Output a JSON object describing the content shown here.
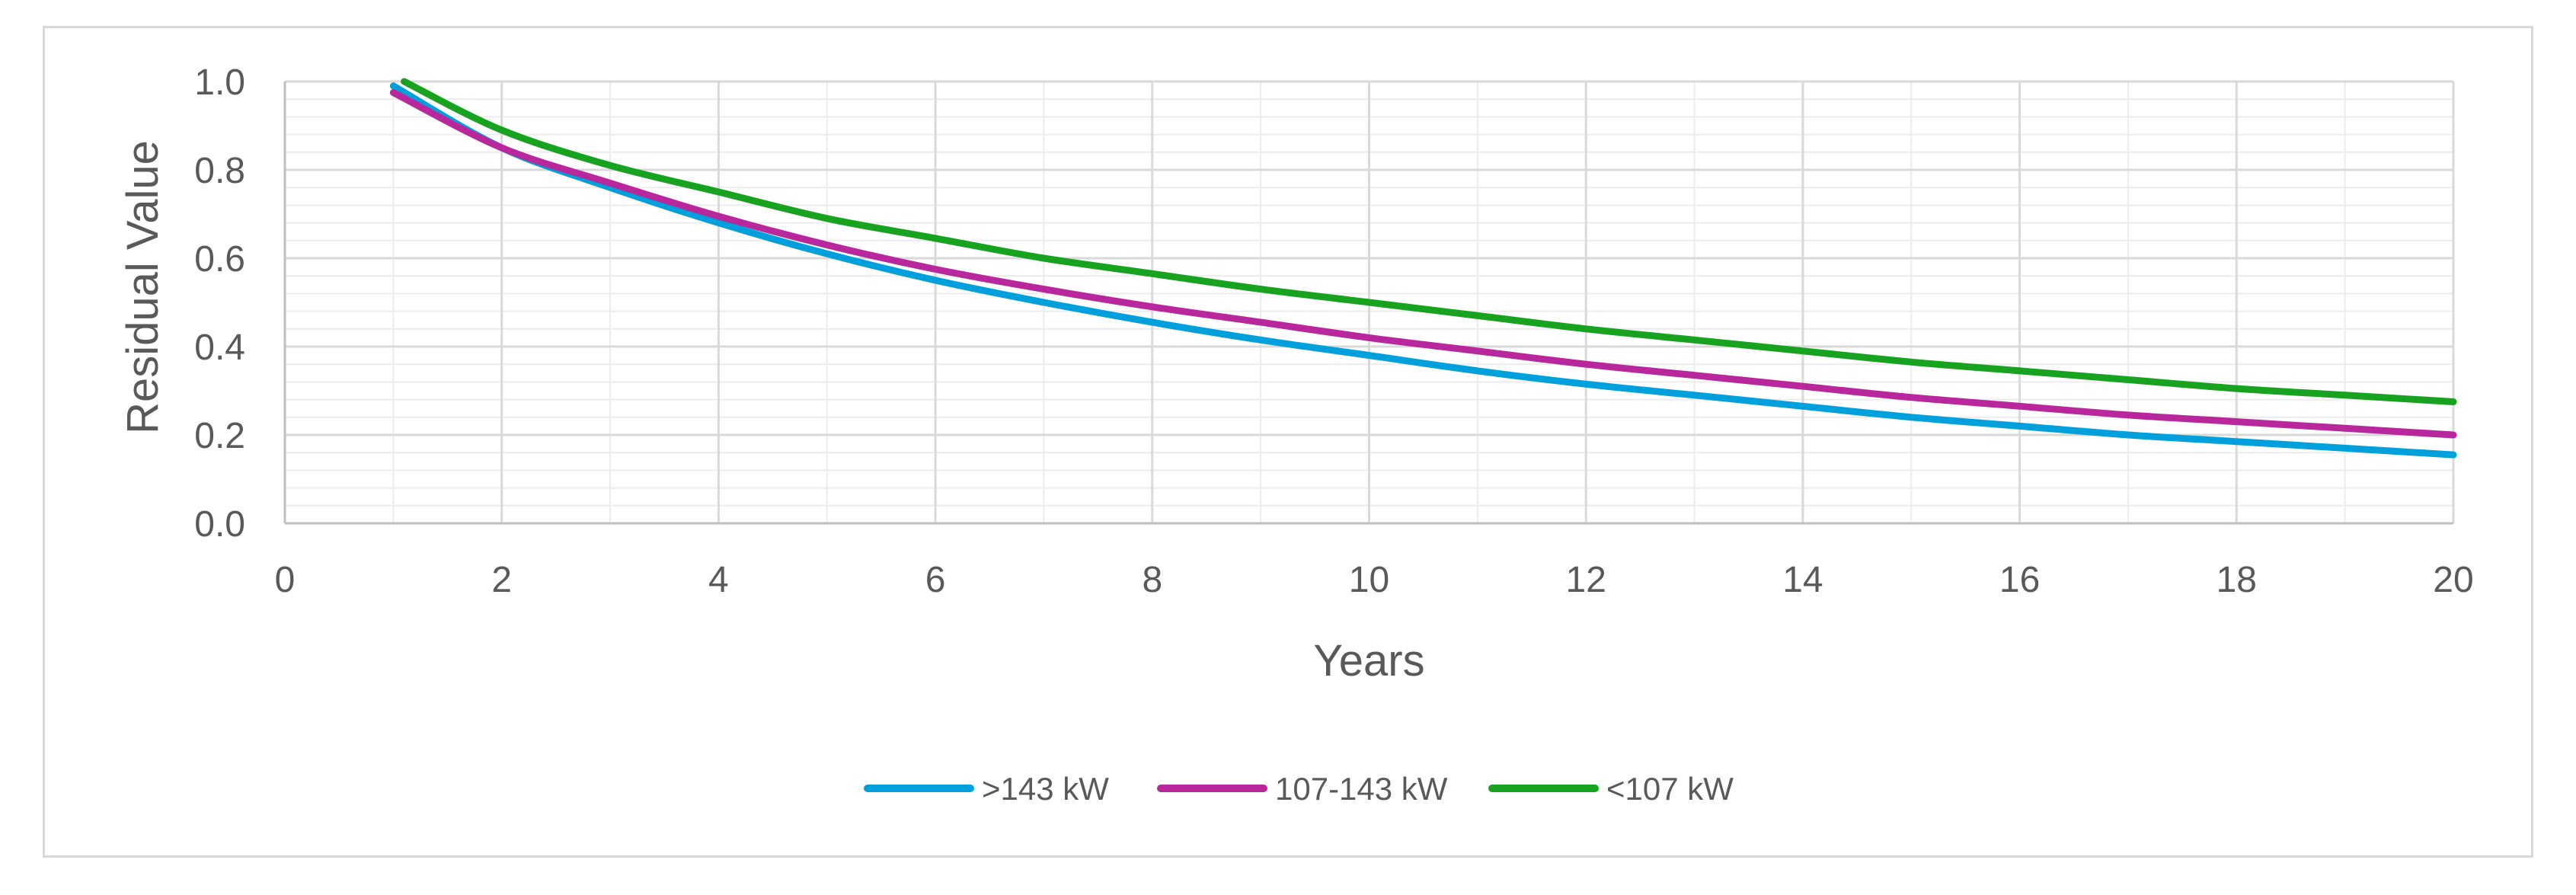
{
  "chart_data": {
    "type": "line",
    "title": "",
    "xlabel": "Years",
    "ylabel": "Residual Value",
    "xlim": [
      0,
      20
    ],
    "ylim": [
      0,
      1.0
    ],
    "xticks": [
      "0",
      "2",
      "4",
      "6",
      "8",
      "10",
      "12",
      "14",
      "16",
      "18",
      "20"
    ],
    "yticks": [
      "0.0",
      "0.2",
      "0.4",
      "0.6",
      "0.8",
      "1.0"
    ],
    "grid": true,
    "legend_position": "bottom",
    "series": [
      {
        "name": ">143 kW",
        "color": "#00a0dc",
        "x": [
          1,
          2,
          3,
          4,
          5,
          6,
          7,
          8,
          9,
          10,
          11,
          12,
          13,
          14,
          15,
          16,
          17,
          18,
          19,
          20
        ],
        "y": [
          0.99,
          0.85,
          0.76,
          0.68,
          0.61,
          0.55,
          0.5,
          0.455,
          0.415,
          0.38,
          0.345,
          0.315,
          0.29,
          0.265,
          0.24,
          0.22,
          0.2,
          0.185,
          0.17,
          0.155
        ]
      },
      {
        "name": "107-143 kW",
        "color": "#b8289c",
        "x": [
          1,
          2,
          3,
          4,
          5,
          6,
          7,
          8,
          9,
          10,
          11,
          12,
          13,
          14,
          15,
          16,
          17,
          18,
          19,
          20
        ],
        "y": [
          0.975,
          0.85,
          0.77,
          0.695,
          0.63,
          0.575,
          0.53,
          0.49,
          0.455,
          0.42,
          0.39,
          0.36,
          0.335,
          0.31,
          0.285,
          0.265,
          0.245,
          0.23,
          0.215,
          0.2
        ]
      },
      {
        "name": "<107 kW",
        "color": "#17a21f",
        "x": [
          1.1,
          2,
          3,
          4,
          5,
          6,
          7,
          8,
          9,
          10,
          11,
          12,
          13,
          14,
          15,
          16,
          17,
          18,
          19,
          20
        ],
        "y": [
          1.0,
          0.89,
          0.81,
          0.75,
          0.69,
          0.645,
          0.6,
          0.565,
          0.53,
          0.5,
          0.47,
          0.44,
          0.415,
          0.39,
          0.365,
          0.345,
          0.325,
          0.305,
          0.29,
          0.275
        ]
      }
    ]
  }
}
